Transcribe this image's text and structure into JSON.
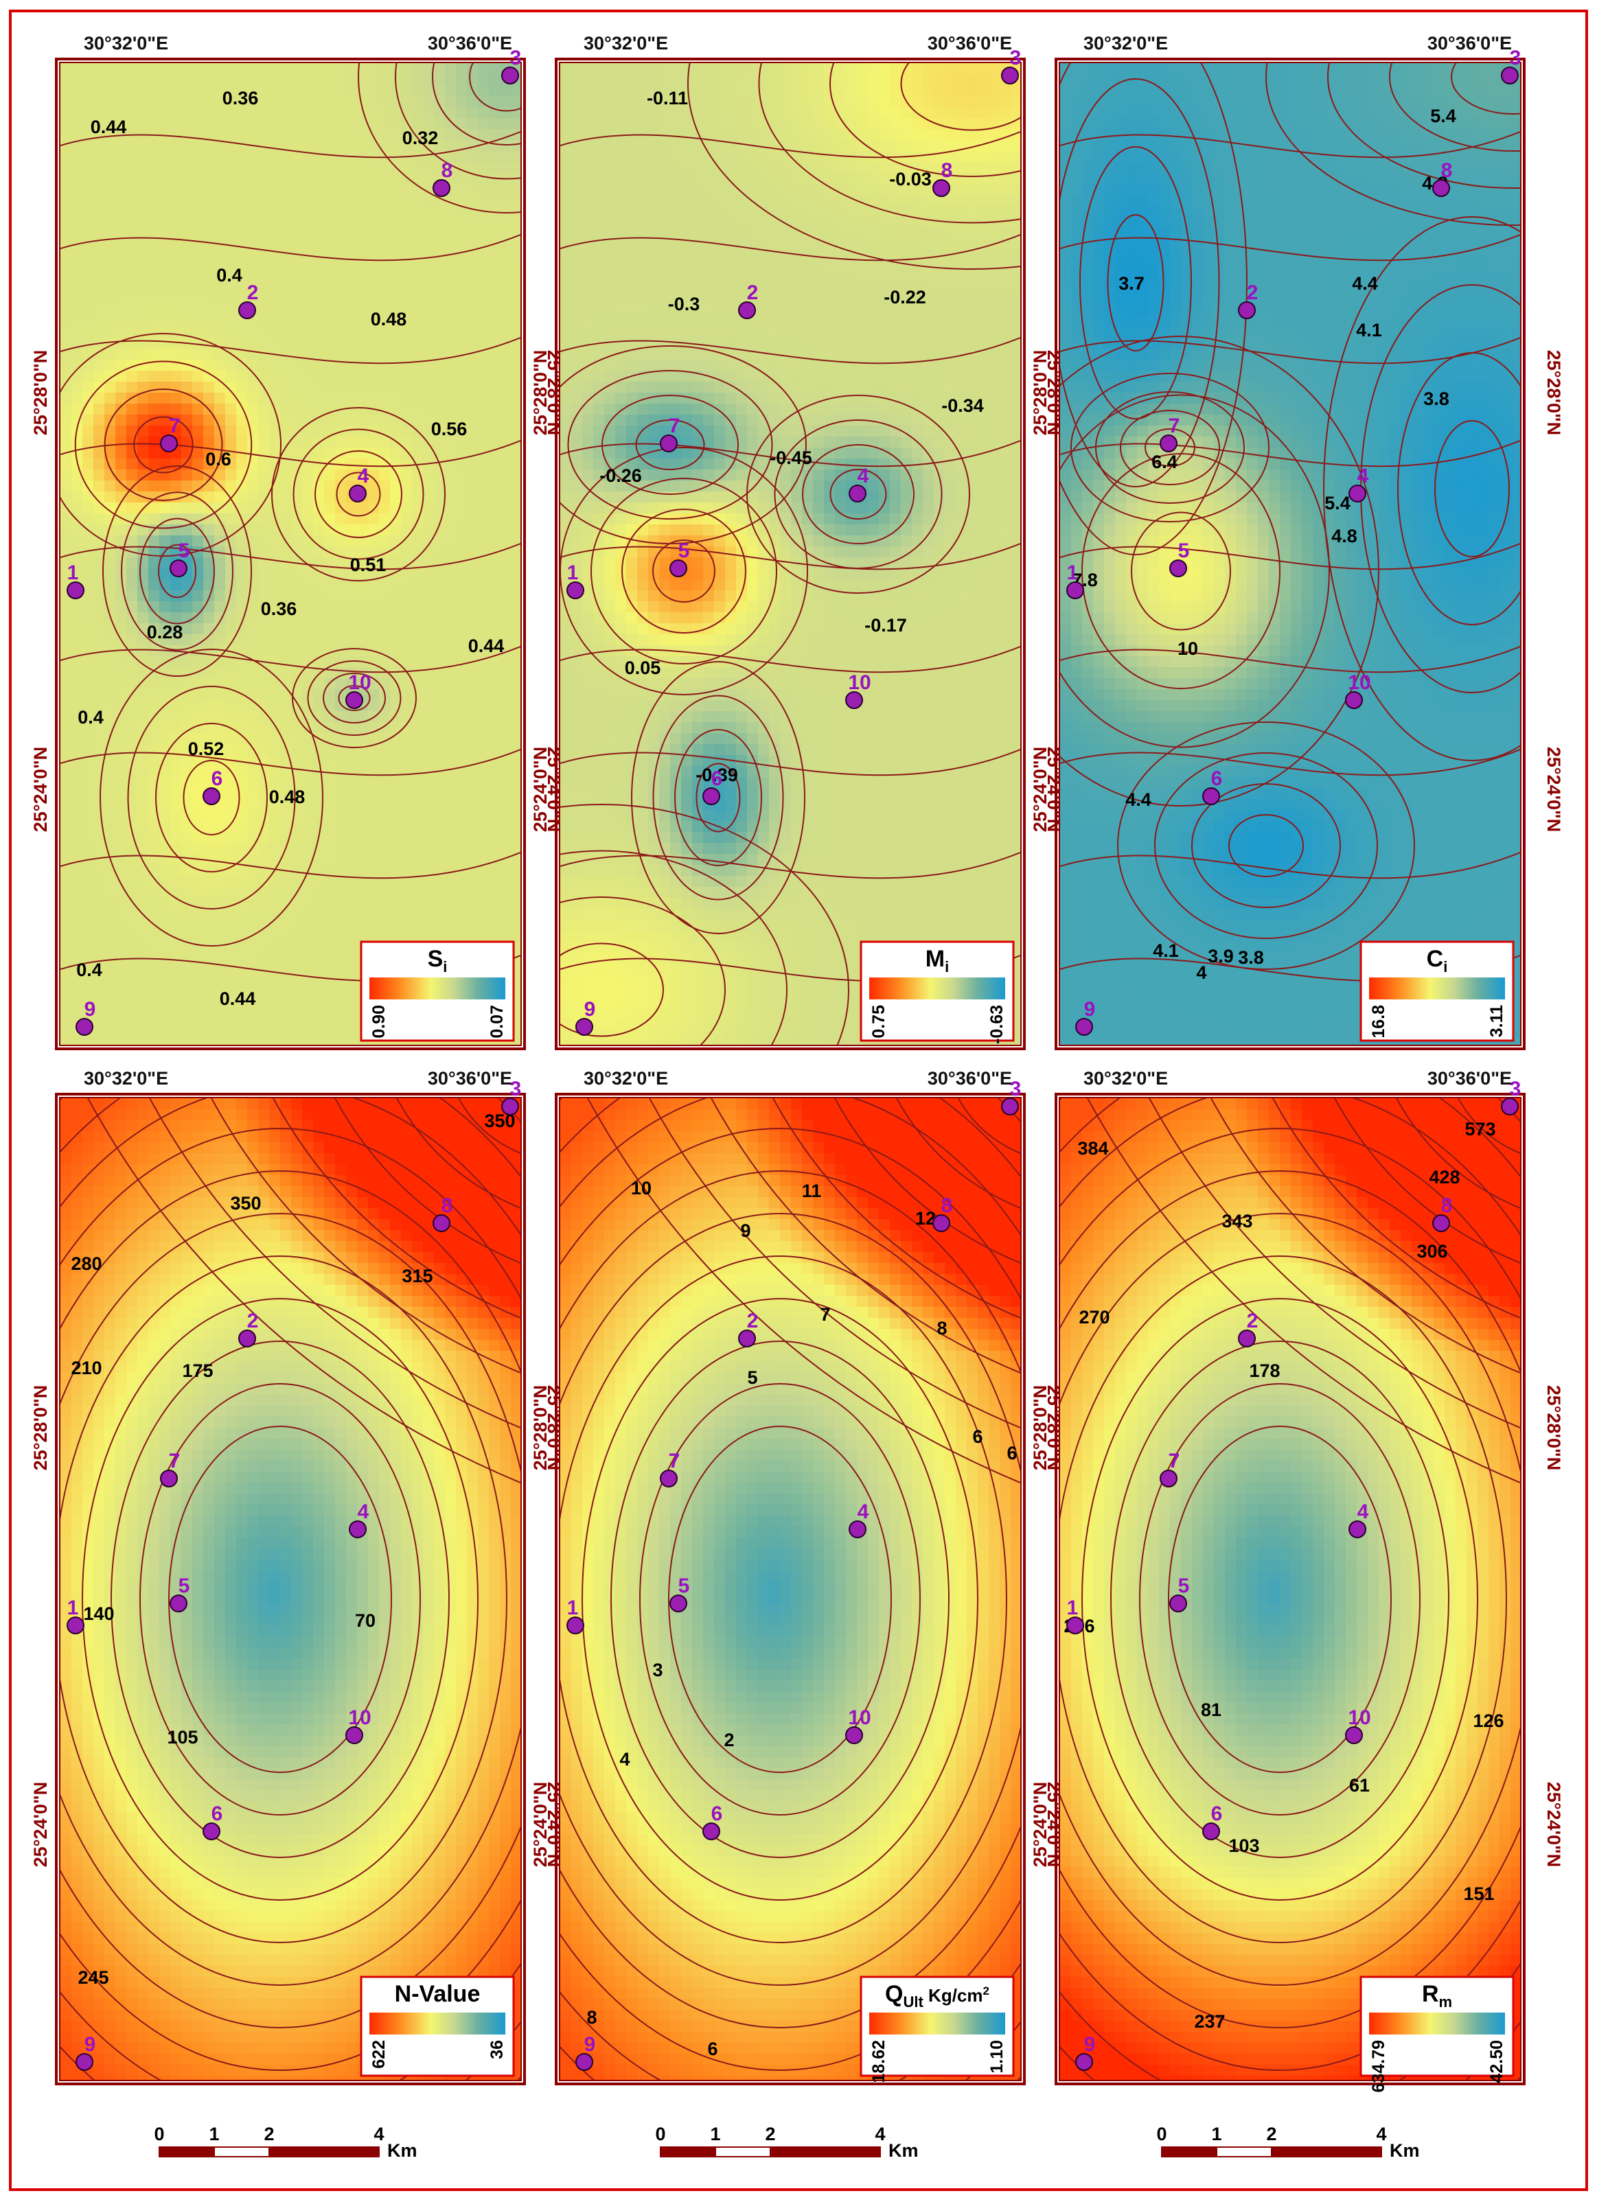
{
  "coords": {
    "lon_left": "30°32'0\"E",
    "lon_right": "30°36'0\"E",
    "lat_top": "25°28'0\"N",
    "lat_bottom": "25°24'0\"N"
  },
  "colors": {
    "frame": "#d90000",
    "panel_border": "#8b0000",
    "contour": "#8b1a1a",
    "well": "#9b1fb0",
    "well_label": "#9a12c0",
    "ramp_high": "#ff2a00",
    "ramp_mid": "#f5f570",
    "ramp_low": "#1a9ad0"
  },
  "panels": [
    {
      "id": "si",
      "legend": {
        "title": "S",
        "sub": "i",
        "high": "0.90",
        "low": "0.07"
      },
      "contour_labels": [
        "0.36",
        "0.44",
        "0.32",
        "0.4",
        "0.48",
        "0.56",
        "0.6",
        "0.51",
        "0.36",
        "0.28",
        "0.44",
        "0.4",
        "0.52",
        "0.48",
        "0.4",
        "0.44"
      ]
    },
    {
      "id": "mi",
      "legend": {
        "title": "M",
        "sub": "i",
        "high": "0.75",
        "low": "-0.63"
      },
      "contour_labels": [
        "-0.11",
        "-0.03",
        "-0.3",
        "-0.22",
        "-0.34",
        "-0.45",
        "-0.26",
        "-0.17",
        "0.05",
        "-0.39"
      ]
    },
    {
      "id": "ci",
      "legend": {
        "title": "C",
        "sub": "i",
        "high": "16.8",
        "low": "3.11"
      },
      "contour_labels": [
        "5.4",
        "4.8",
        "3.7",
        "4.4",
        "4.1",
        "3.8",
        "6.4",
        "5.4",
        "4.8",
        "7.8",
        "10",
        "4.4",
        "4.1",
        "4",
        "3.9",
        "3.8"
      ]
    },
    {
      "id": "nv",
      "legend": {
        "title": "N-Value",
        "sub": "",
        "high": "622",
        "low": "36"
      },
      "contour_labels": [
        "350",
        "350",
        "280",
        "315",
        "210",
        "175",
        "140",
        "70",
        "105",
        "245"
      ]
    },
    {
      "id": "qu",
      "legend": {
        "title": "Q",
        "sub": "Ult",
        "extra": " Kg/cm",
        "sup": "2",
        "high": "18.62",
        "low": "1.10"
      },
      "contour_labels": [
        "10",
        "11",
        "12",
        "9",
        "7",
        "8",
        "5",
        "6",
        "3",
        "4",
        "2",
        "6",
        "8",
        "6"
      ]
    },
    {
      "id": "rm",
      "legend": {
        "title": "R",
        "sub": "m",
        "high": "634.79",
        "low": "42.50"
      },
      "contour_labels": [
        "384",
        "573",
        "428",
        "343",
        "306",
        "270",
        "178",
        "206",
        "81",
        "61",
        "126",
        "103",
        "151",
        "237"
      ]
    }
  ],
  "wells": [
    "1",
    "2",
    "3",
    "4",
    "5",
    "6",
    "7",
    "8",
    "9",
    "10"
  ],
  "scale_bar": {
    "ticks": [
      "0",
      "1",
      "2",
      "4"
    ],
    "unit": "Km"
  }
}
